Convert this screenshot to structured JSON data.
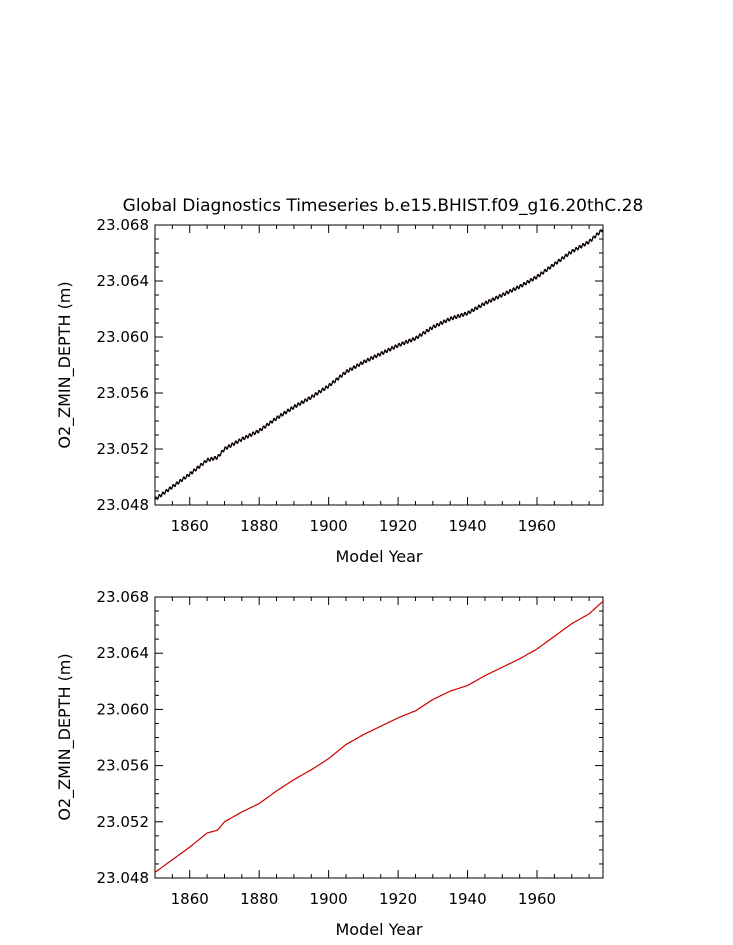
{
  "figure": {
    "title": "Global Diagnostics Timeseries b.e15.BHIST.f09_g16.20thC.28"
  },
  "chart_data": [
    {
      "type": "line",
      "xlabel": "Model Year",
      "ylabel": "O2_ZMIN_DEPTH (m)",
      "xlim": [
        1850,
        1979
      ],
      "ylim": [
        23.048,
        23.068
      ],
      "x_ticks": [
        "1860",
        "1880",
        "1900",
        "1920",
        "1940",
        "1960"
      ],
      "y_ticks": [
        "23.048",
        "23.052",
        "23.056",
        "23.060",
        "23.064",
        "23.068"
      ],
      "grid": false,
      "line_color": "#cc0000",
      "marker_color": "#000000",
      "seasonal_cycle": "monthly",
      "series": [
        {
          "x": [
            1850,
            1855,
            1860,
            1865,
            1868,
            1870,
            1875,
            1880,
            1885,
            1890,
            1895,
            1900,
            1905,
            1910,
            1915,
            1920,
            1925,
            1930,
            1935,
            1940,
            1945,
            1950,
            1955,
            1960,
            1965,
            1970,
            1975,
            1979
          ],
          "y": [
            23.0484,
            23.0493,
            23.0502,
            23.0512,
            23.0514,
            23.052,
            23.0527,
            23.0533,
            23.0542,
            23.055,
            23.0557,
            23.0565,
            23.0575,
            23.0582,
            23.0588,
            23.0594,
            23.0599,
            23.0607,
            23.0613,
            23.0617,
            23.0624,
            23.063,
            23.0636,
            23.0643,
            23.0652,
            23.0661,
            23.0668,
            23.0677
          ]
        }
      ]
    },
    {
      "type": "line",
      "xlabel": "Model Year",
      "ylabel": "O2_ZMIN_DEPTH (m)",
      "xlim": [
        1850,
        1979
      ],
      "ylim": [
        23.048,
        23.068
      ],
      "x_ticks": [
        "1860",
        "1880",
        "1900",
        "1920",
        "1940",
        "1960"
      ],
      "y_ticks": [
        "23.048",
        "23.052",
        "23.056",
        "23.060",
        "23.064",
        "23.068"
      ],
      "grid": false,
      "line_color": "#cc0000",
      "series": [
        {
          "x": [
            1850,
            1855,
            1860,
            1865,
            1868,
            1870,
            1875,
            1880,
            1885,
            1890,
            1895,
            1900,
            1905,
            1910,
            1915,
            1920,
            1925,
            1930,
            1935,
            1940,
            1945,
            1950,
            1955,
            1960,
            1965,
            1970,
            1975,
            1979
          ],
          "y": [
            23.0484,
            23.0493,
            23.0502,
            23.0512,
            23.0514,
            23.052,
            23.0527,
            23.0533,
            23.0542,
            23.055,
            23.0557,
            23.0565,
            23.0575,
            23.0582,
            23.0588,
            23.0594,
            23.0599,
            23.0607,
            23.0613,
            23.0617,
            23.0624,
            23.063,
            23.0636,
            23.0643,
            23.0652,
            23.0661,
            23.0668,
            23.0677
          ]
        }
      ]
    }
  ]
}
